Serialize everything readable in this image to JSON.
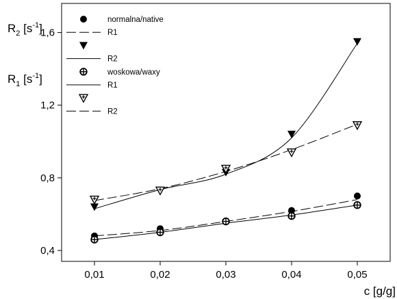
{
  "chart_data": {
    "type": "scatter",
    "title": "",
    "xlabel": "c [g/g]",
    "ylabel_top": {
      "base": "R",
      "sub": "2",
      "unit_open": " [s",
      "sup": "-1",
      "unit_close": "]"
    },
    "ylabel_bottom": {
      "base": "R",
      "sub": "1",
      "unit_open": " [s",
      "sup": "-1",
      "unit_close": "]"
    },
    "xlim": [
      0.005,
      0.055
    ],
    "ylim": [
      0.34,
      1.76
    ],
    "x_ticks": [
      0.01,
      0.02,
      0.03,
      0.04,
      0.05
    ],
    "x_tick_labels": [
      "0,01",
      "0,02",
      "0,03",
      "0,04",
      "0,05"
    ],
    "y_ticks": [
      0.4,
      0.8,
      1.2,
      1.6
    ],
    "y_tick_labels": [
      "0,4",
      "0,8",
      "1,2",
      "1,6"
    ],
    "grid": false,
    "legend_position": "top-left",
    "series": [
      {
        "key": "native_r1",
        "marker": "filled-circle",
        "x": [
          0.01,
          0.02,
          0.03,
          0.04,
          0.05
        ],
        "y": [
          0.48,
          0.52,
          0.56,
          0.62,
          0.7
        ],
        "fit_style": "dashed",
        "fit": [
          0.48,
          0.51,
          0.56,
          0.615,
          0.68
        ]
      },
      {
        "key": "native_r2",
        "marker": "filled-triangle-down",
        "x": [
          0.01,
          0.02,
          0.03,
          0.04,
          0.05
        ],
        "y": [
          0.64,
          0.73,
          0.83,
          1.04,
          1.55
        ],
        "fit_style": "solid",
        "fit": [
          0.63,
          0.735,
          0.82,
          1.02,
          1.54
        ]
      },
      {
        "key": "waxy_r1",
        "marker": "circle-plus",
        "x": [
          0.01,
          0.02,
          0.03,
          0.04,
          0.05
        ],
        "y": [
          0.46,
          0.5,
          0.56,
          0.59,
          0.65
        ],
        "fit_style": "solid",
        "fit": [
          0.46,
          0.5,
          0.55,
          0.595,
          0.65
        ]
      },
      {
        "key": "waxy_r2",
        "marker": "open-triangle-down",
        "x": [
          0.01,
          0.02,
          0.03,
          0.04,
          0.05
        ],
        "y": [
          0.68,
          0.73,
          0.85,
          0.94,
          1.09
        ],
        "fit_style": "dashed",
        "fit": [
          0.675,
          0.74,
          0.835,
          0.955,
          1.095
        ]
      }
    ],
    "legend": {
      "group1_label": "normalna/native",
      "group2_label": "woskowa/waxy",
      "entries": [
        {
          "kind": "marker",
          "marker": "filled-circle",
          "label": "normalna/native"
        },
        {
          "kind": "line",
          "style": "dashed",
          "label": "R1"
        },
        {
          "kind": "marker",
          "marker": "filled-triangle-down",
          "label": ""
        },
        {
          "kind": "line",
          "style": "solid",
          "label": "R2"
        },
        {
          "kind": "marker",
          "marker": "circle-plus",
          "label": "woskowa/waxy"
        },
        {
          "kind": "line",
          "style": "solid",
          "label": "R1"
        },
        {
          "kind": "marker",
          "marker": "open-triangle-down",
          "label": ""
        },
        {
          "kind": "line",
          "style": "dashed",
          "label": "R2"
        }
      ]
    }
  }
}
